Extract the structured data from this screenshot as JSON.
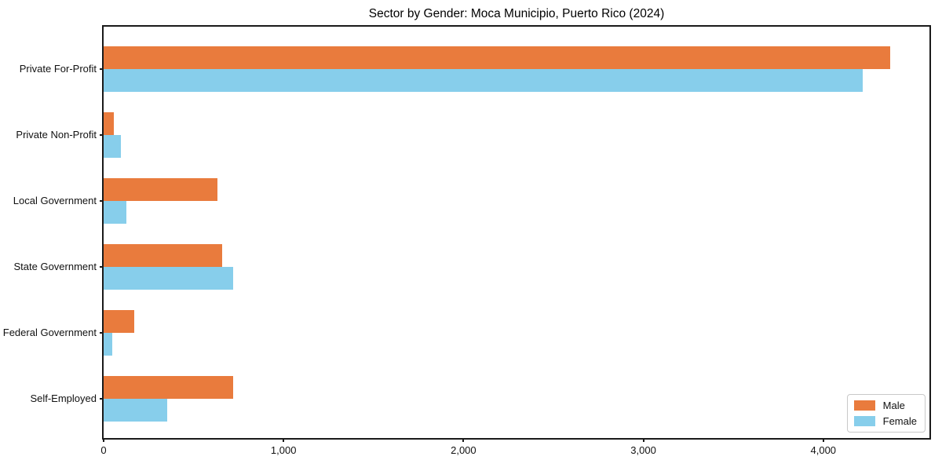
{
  "title": "Sector by Gender: Moca Municipio, Puerto Rico (2024)",
  "chart_data": {
    "type": "bar",
    "orientation": "horizontal",
    "title": "Sector by Gender: Moca Municipio, Puerto Rico (2024)",
    "categories": [
      "Private For-Profit",
      "Private Non-Profit",
      "Local Government",
      "State Government",
      "Federal Government",
      "Self-Employed"
    ],
    "series": [
      {
        "name": "Male",
        "color": "#E97B3D",
        "values": [
          4370,
          57,
          632,
          660,
          171,
          722
        ]
      },
      {
        "name": "Female",
        "color": "#87CEEB",
        "values": [
          4217,
          96,
          127,
          722,
          48,
          355
        ]
      }
    ],
    "xlabel": "",
    "ylabel": "",
    "xlim": [
      0,
      4590
    ],
    "xticks": [
      0,
      1000,
      2000,
      3000,
      4000
    ],
    "xtick_labels": [
      "0",
      "1,000",
      "2,000",
      "3,000",
      "4,000"
    ],
    "grid": false,
    "legend_position": "lower right"
  }
}
